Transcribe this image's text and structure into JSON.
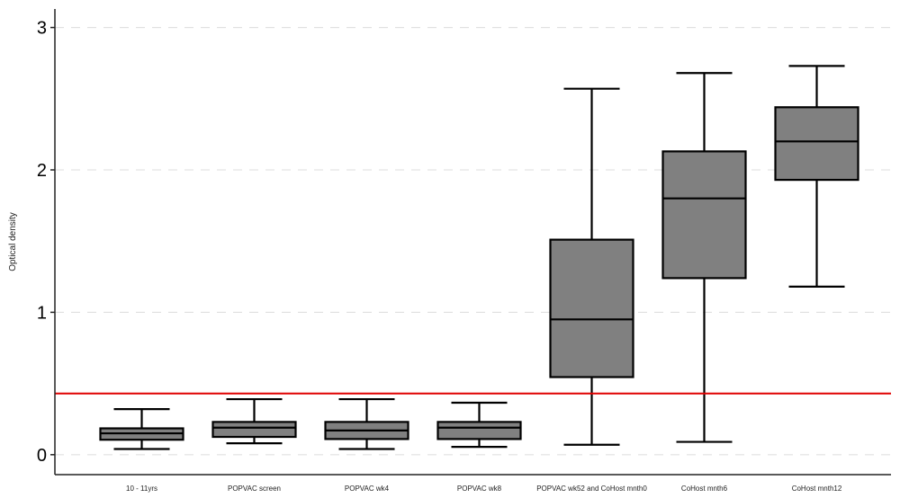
{
  "chart_data": {
    "type": "box",
    "title": "",
    "xlabel": "",
    "ylabel": "Optical density",
    "ylim": [
      -0.14,
      3.13
    ],
    "yticks": [
      0,
      1,
      2,
      3
    ],
    "ytick_labels": [
      "0",
      "1",
      "2",
      "3"
    ],
    "grid": "horizontal dashed",
    "categories": [
      "10 - 11yrs",
      "POPVAC screen",
      "POPVAC wk4",
      "POPVAC wk8",
      "POPVAC wk52 and CoHost mnth0",
      "CoHost mnth6",
      "CoHost mnth12"
    ],
    "boxes": [
      {
        "whisker_low": 0.04,
        "q1": 0.105,
        "median": 0.15,
        "q3": 0.185,
        "whisker_high": 0.32
      },
      {
        "whisker_low": 0.08,
        "q1": 0.125,
        "median": 0.19,
        "q3": 0.23,
        "whisker_high": 0.39
      },
      {
        "whisker_low": 0.04,
        "q1": 0.11,
        "median": 0.17,
        "q3": 0.23,
        "whisker_high": 0.39
      },
      {
        "whisker_low": 0.055,
        "q1": 0.11,
        "median": 0.19,
        "q3": 0.23,
        "whisker_high": 0.365
      },
      {
        "whisker_low": 0.07,
        "q1": 0.545,
        "median": 0.95,
        "q3": 1.51,
        "whisker_high": 2.57
      },
      {
        "whisker_low": 0.09,
        "q1": 1.24,
        "median": 1.8,
        "q3": 2.13,
        "whisker_high": 2.68
      },
      {
        "whisker_low": 1.18,
        "q1": 1.93,
        "median": 2.2,
        "q3": 2.44,
        "whisker_high": 2.73
      }
    ],
    "reference_line": {
      "value": 0.43,
      "color": "#e00000"
    },
    "box_fill": "#808080"
  }
}
